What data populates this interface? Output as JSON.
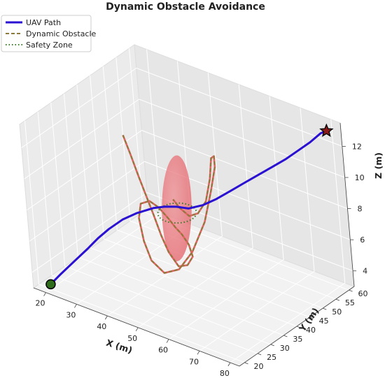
{
  "chart_data": {
    "type": "line3d",
    "title": "Dynamic Obstacle Avoidance",
    "xlabel": "X (m)",
    "ylabel": "Y (m)",
    "zlabel": "Z (m)",
    "xlim": [
      16,
      83
    ],
    "ylim": [
      18,
      62
    ],
    "zlim": [
      3,
      13.5
    ],
    "xticks": [
      "20",
      "30",
      "40",
      "50",
      "60",
      "70",
      "80"
    ],
    "yticks": [
      "20",
      "25",
      "30",
      "35",
      "40",
      "45",
      "50",
      "55",
      "60"
    ],
    "zticks": [
      "4",
      "6",
      "8",
      "10",
      "12"
    ],
    "grid": true,
    "legend_position": "top-left",
    "legend": [
      "UAV Path",
      "Dynamic Obstacle",
      "Safety Zone"
    ],
    "colors": {
      "uav_path": "#2a10d0",
      "obstacle_path": "#8d7a3a",
      "obstacle_path_underlay": "#e06464",
      "safety_zone": "#3a7a2a",
      "obstacle_body": "#e2565e",
      "start_marker": "#2e6b1a",
      "goal_marker": "#8b1a1a"
    },
    "series": [
      {
        "name": "UAV Path",
        "style": "solid",
        "points": [
          [
            20,
            20,
            3.3
          ],
          [
            22,
            22,
            3.9
          ],
          [
            24,
            25,
            4.5
          ],
          [
            26,
            28,
            5.1
          ],
          [
            28,
            30,
            5.7
          ],
          [
            30,
            32,
            6.2
          ],
          [
            33,
            34,
            6.8
          ],
          [
            36,
            36,
            7.2
          ],
          [
            40,
            38,
            7.6
          ],
          [
            43,
            39,
            7.8
          ],
          [
            46,
            40,
            7.9
          ],
          [
            49,
            41,
            7.9
          ],
          [
            52,
            43,
            8.1
          ],
          [
            55,
            45,
            8.5
          ],
          [
            58,
            47,
            9.0
          ],
          [
            61,
            49,
            9.5
          ],
          [
            64,
            51,
            10.0
          ],
          [
            67,
            53,
            10.5
          ],
          [
            70,
            55,
            11.0
          ],
          [
            73,
            56,
            11.6
          ],
          [
            76,
            58,
            12.2
          ],
          [
            78,
            60,
            12.7
          ],
          [
            80,
            60,
            13.0
          ]
        ]
      },
      {
        "name": "Dynamic Obstacle",
        "style": "dashed",
        "points": [
          [
            30,
            40,
            11.3
          ],
          [
            32,
            40,
            10.2
          ],
          [
            34,
            40,
            9.0
          ],
          [
            36,
            40,
            7.9
          ],
          [
            38,
            40,
            6.8
          ],
          [
            40,
            40,
            5.6
          ],
          [
            42,
            40,
            4.7
          ],
          [
            45,
            40,
            4.0
          ],
          [
            48,
            40,
            4.3
          ],
          [
            50,
            40,
            5.0
          ],
          [
            49,
            40,
            5.7
          ],
          [
            47,
            40,
            6.2
          ],
          [
            45,
            40,
            6.5
          ],
          [
            43,
            40,
            6.9
          ],
          [
            40,
            40,
            7.4
          ],
          [
            37,
            40,
            7.6
          ],
          [
            34,
            40,
            7.2
          ],
          [
            33,
            40,
            6.2
          ],
          [
            34,
            40,
            4.8
          ],
          [
            36,
            40,
            3.7
          ],
          [
            40,
            40,
            3.2
          ],
          [
            45,
            40,
            3.8
          ],
          [
            50,
            40,
            5.3
          ],
          [
            55,
            40,
            7.6
          ],
          [
            58,
            40,
            9.8
          ],
          [
            60,
            40,
            11.5
          ],
          [
            60,
            40,
            12.2
          ],
          [
            59,
            40,
            12.0
          ],
          [
            58,
            40,
            10.6
          ],
          [
            56,
            40,
            9.0
          ],
          [
            53,
            40,
            8.0
          ],
          [
            50,
            40,
            7.6
          ],
          [
            47,
            40,
            7.9
          ],
          [
            45,
            40,
            8.3
          ]
        ]
      },
      {
        "name": "Safety Zone",
        "style": "dotted",
        "center": [
          46,
          40,
          7.5
        ],
        "radius": 5
      }
    ],
    "obstacle": {
      "center": [
        46,
        40,
        7.8
      ],
      "radius_xy": 2.2,
      "half_height": 3.4
    },
    "start": [
      20,
      20,
      3.3
    ],
    "goal": [
      80,
      60,
      13.0
    ]
  }
}
